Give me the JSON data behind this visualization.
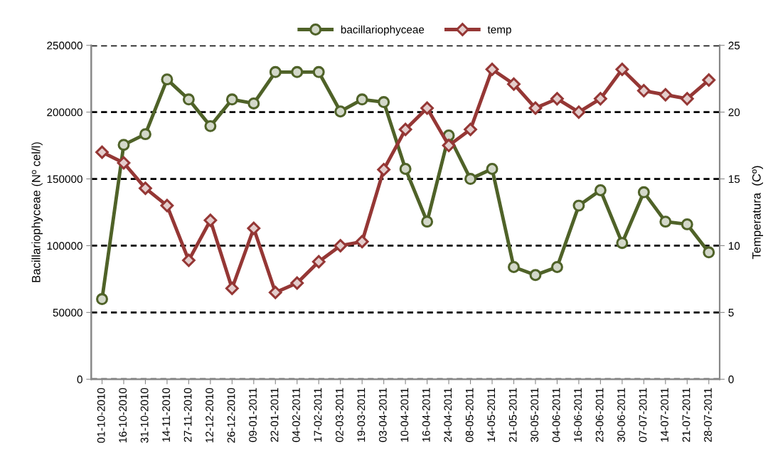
{
  "chart_data": {
    "type": "line",
    "categories": [
      "01-10-2010",
      "16-10-2010",
      "31-10-2010",
      "14-11-2010",
      "27-11-2010",
      "12-12-2010",
      "26-12-2010",
      "09-01-2011",
      "22-01-2011",
      "04-02-2011",
      "17-02-2011",
      "02-03-2011",
      "19-03-2011",
      "03-04-2011",
      "10-04-2011",
      "16-04-2011",
      "24-04-2011",
      "08-05-2011",
      "14-05-2011",
      "21-05-2011",
      "30-05-2011",
      "04-06-2011",
      "16-06-2011",
      "23-06-2011",
      "30-06-2011",
      "07-07-2011",
      "14-07-2011",
      "21-07-2011",
      "28-07-2011"
    ],
    "series": [
      {
        "name": "bacillariophyceae",
        "color": "#4f6228",
        "marker": "circle",
        "values": [
          60000,
          175500,
          183500,
          224500,
          209500,
          189500,
          209500,
          206500,
          230000,
          230000,
          230000,
          200500,
          209500,
          207500,
          157500,
          118000,
          182500,
          150000,
          157500,
          84000,
          78000,
          84000,
          130000,
          141500,
          102000,
          140000,
          118000,
          116000,
          95000
        ]
      },
      {
        "name": "temp",
        "color": "#953735",
        "marker": "diamond",
        "axis": "y2",
        "values": [
          17.0,
          16.2,
          14.3,
          13.0,
          8.9,
          11.9,
          6.8,
          11.3,
          6.5,
          7.2,
          8.8,
          10.0,
          10.3,
          15.7,
          18.7,
          20.3,
          17.5,
          18.7,
          23.2,
          22.1,
          20.3,
          21.0,
          20.0,
          21.0,
          23.2,
          21.6,
          21.3,
          21.0,
          22.4
        ]
      }
    ],
    "ylabel": "Bacillariophyceae (Nº cel/l)",
    "y2label": "Temperatura  (Cº)",
    "ylim": [
      0,
      250000
    ],
    "yticks": [
      0,
      50000,
      100000,
      150000,
      200000,
      250000
    ],
    "y2lim": [
      0,
      25
    ],
    "y2ticks": [
      0,
      5,
      10,
      15,
      20,
      25
    ],
    "grid": "y",
    "line_style": "solid",
    "legend": "top"
  }
}
